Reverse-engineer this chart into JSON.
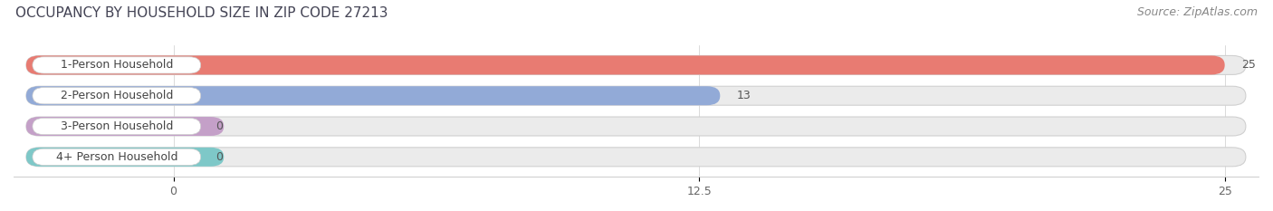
{
  "title": "OCCUPANCY BY HOUSEHOLD SIZE IN ZIP CODE 27213",
  "source": "Source: ZipAtlas.com",
  "categories": [
    "1-Person Household",
    "2-Person Household",
    "3-Person Household",
    "4+ Person Household"
  ],
  "values": [
    25,
    13,
    0,
    0
  ],
  "bar_colors": [
    "#E87B72",
    "#92AAD7",
    "#C4A0C8",
    "#7EC8C8"
  ],
  "xlim": [
    0,
    25
  ],
  "xticks": [
    0,
    12.5,
    25
  ],
  "background_color": "#ffffff",
  "bar_bg_color": "#ebebeb",
  "title_fontsize": 11,
  "source_fontsize": 9,
  "label_fontsize": 9,
  "value_fontsize": 9,
  "bar_height": 0.62,
  "label_color": "#444444",
  "title_color": "#444455",
  "source_color": "#888888"
}
